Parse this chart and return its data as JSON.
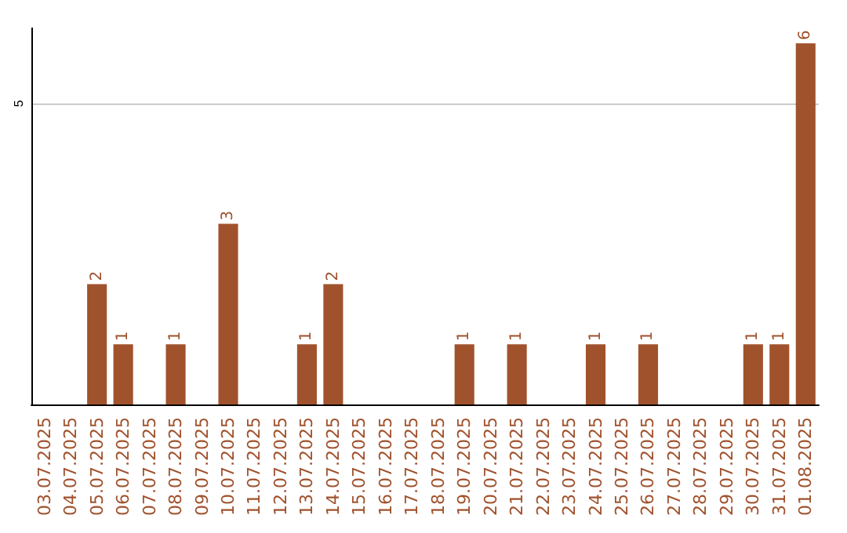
{
  "chart_data": {
    "type": "bar",
    "categories": [
      "03.07.2025",
      "04.07.2025",
      "05.07.2025",
      "06.07.2025",
      "07.07.2025",
      "08.07.2025",
      "09.07.2025",
      "10.07.2025",
      "11.07.2025",
      "12.07.2025",
      "13.07.2025",
      "14.07.2025",
      "15.07.2025",
      "16.07.2025",
      "17.07.2025",
      "18.07.2025",
      "19.07.2025",
      "20.07.2025",
      "21.07.2025",
      "22.07.2025",
      "23.07.2025",
      "24.07.2025",
      "25.07.2025",
      "26.07.2025",
      "27.07.2025",
      "28.07.2025",
      "29.07.2025",
      "30.07.2025",
      "31.07.2025",
      "01.08.2025"
    ],
    "values": [
      0,
      0,
      2,
      1,
      0,
      1,
      0,
      3,
      0,
      0,
      1,
      2,
      0,
      0,
      0,
      0,
      1,
      0,
      1,
      0,
      0,
      1,
      0,
      1,
      0,
      0,
      0,
      1,
      1,
      6
    ],
    "value_labels": [
      null,
      null,
      "2",
      "1",
      null,
      "1",
      null,
      "3",
      null,
      null,
      "1",
      "2",
      null,
      null,
      null,
      null,
      "1",
      null,
      "1",
      null,
      null,
      "1",
      null,
      "1",
      null,
      null,
      null,
      "1",
      "1",
      "6"
    ],
    "color": "#a0522d",
    "ylim": [
      0,
      6.25
    ],
    "yticks": [
      5
    ],
    "grid": "y"
  }
}
